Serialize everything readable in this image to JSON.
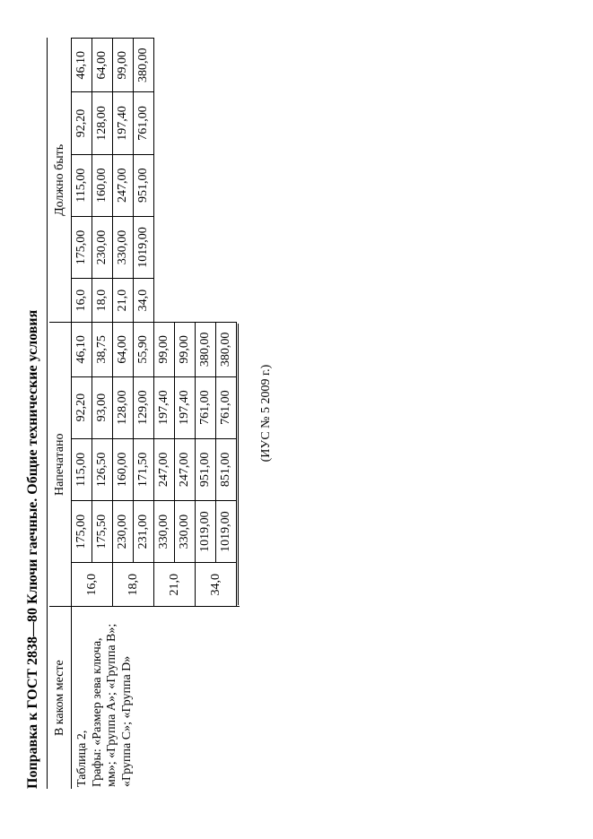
{
  "title": "Поправка к ГОСТ 2838—80 Ключи гаечные. Общие технические условия",
  "headers": {
    "place": "В каком месте",
    "printed": "Напечатано",
    "should_be": "Должно быть"
  },
  "description": {
    "line1": "Таблица 2,",
    "line2": "Графы: «Размер зева ключа, мм»; «Группа А»; «Группа В»; «Группа С»; «Группа D»"
  },
  "printed": {
    "keys": [
      "16,0",
      "",
      "18,0",
      "",
      "21,0",
      "",
      "34,0",
      ""
    ],
    "rows": [
      [
        "175,00",
        "115,00",
        "92,20",
        "46,10"
      ],
      [
        "175,50",
        "126,50",
        "93,00",
        "38,75"
      ],
      [
        "230,00",
        "160,00",
        "128,00",
        "64,00"
      ],
      [
        "231,00",
        "171,50",
        "129,00",
        "55,90"
      ],
      [
        "330,00",
        "247,00",
        "197,40",
        "99,00"
      ],
      [
        "330,00",
        "247,00",
        "197,40",
        "99,00"
      ],
      [
        "1019,00",
        "951,00",
        "761,00",
        "380,00"
      ],
      [
        "1019,00",
        "851,00",
        "761,00",
        "380,00"
      ]
    ]
  },
  "should_be": {
    "keys": [
      "16,0",
      "18,0",
      "21,0",
      "34,0"
    ],
    "rows": [
      [
        "175,00",
        "115,00",
        "92,20",
        "46,10"
      ],
      [
        "230,00",
        "160,00",
        "128,00",
        "64,00"
      ],
      [
        "330,00",
        "247,00",
        "197,40",
        "99,00"
      ],
      [
        "1019,00",
        "951,00",
        "761,00",
        "380,00"
      ]
    ]
  },
  "footer": "(ИУС № 5 2009 г.)",
  "colors": {
    "text": "#000000",
    "background": "#ffffff",
    "border": "#000000"
  },
  "fonts": {
    "family": "Times New Roman",
    "title_size_pt": 12,
    "body_size_pt": 10.5
  }
}
